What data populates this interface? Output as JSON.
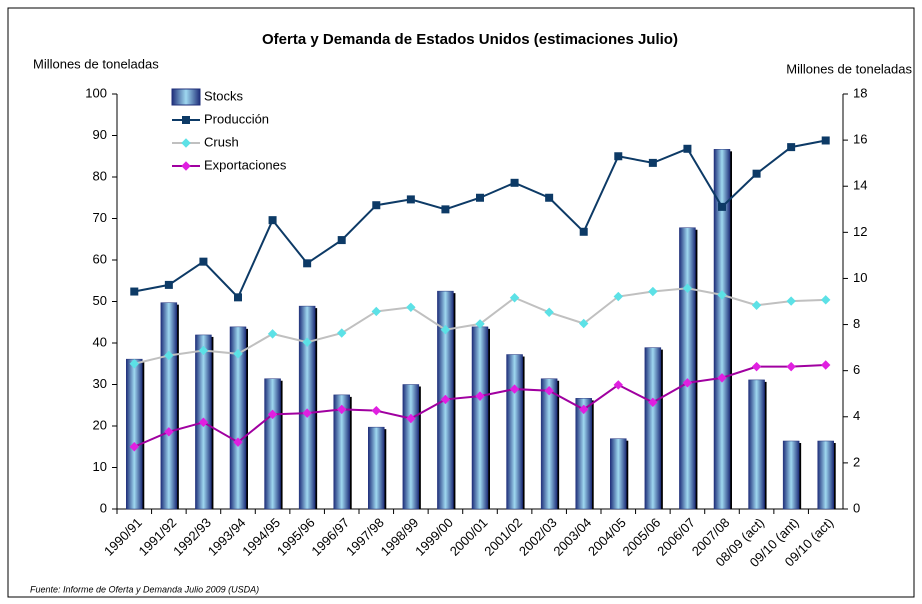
{
  "chart_data": {
    "type": "bar_line",
    "title": "Oferta y Demanda de Estados Unidos (estimaciones Julio)",
    "ylabel": "Millones de toneladas",
    "y2label": "Millones de toneladas",
    "source": "Fuente: Informe de Oferta y Demanda Julio 2009 (USDA)",
    "categories": [
      "1990/91",
      "1991/92",
      "1992/93",
      "1993/94",
      "1994/95",
      "1995/96",
      "1996/97",
      "1997/98",
      "1998/99",
      "1999/00",
      "2000/01",
      "2001/02",
      "2002/03",
      "2003/04",
      "2004/05",
      "2005/06",
      "2006/07",
      "2007/08",
      "08/09 (act)",
      "09/10 (ant)",
      "09/10 (act)"
    ],
    "ylim": [
      0,
      100
    ],
    "yticks": [
      0,
      10,
      20,
      30,
      40,
      50,
      60,
      70,
      80,
      90,
      100
    ],
    "y2lim": [
      0,
      18
    ],
    "y2ticks": [
      0,
      2,
      4,
      6,
      8,
      10,
      12,
      14,
      16,
      18
    ],
    "legend": "upper left",
    "series": [
      {
        "name": "Stocks",
        "type": "bar",
        "axis": "y2",
        "color": "#1f2f7a",
        "values": [
          6.5,
          8.95,
          7.55,
          7.9,
          5.65,
          8.8,
          4.95,
          3.55,
          5.4,
          9.45,
          7.9,
          6.7,
          5.65,
          4.8,
          3.05,
          7.0,
          12.2,
          15.6,
          5.6,
          2.95,
          2.95
        ]
      },
      {
        "name": "Producción",
        "type": "line",
        "color": "#0d3a66",
        "marker_color": "#0d3a66",
        "marker": "square",
        "values": [
          52.4,
          54,
          59.6,
          51,
          69.6,
          59.2,
          64.8,
          73.2,
          74.6,
          72.2,
          75,
          78.6,
          75,
          66.8,
          85,
          83.4,
          86.8,
          72.8,
          80.8,
          87.2,
          88.8
        ]
      },
      {
        "name": "Crush",
        "type": "line",
        "color": "#c0c0c0",
        "marker_color": "#5ce1e6",
        "marker": "diamond",
        "values": [
          35,
          37,
          38.2,
          37.4,
          42.2,
          40.2,
          42.4,
          47.6,
          48.6,
          43.2,
          44.6,
          50.9,
          47.4,
          44.7,
          51.2,
          52.4,
          53.2,
          51.6,
          49.1,
          50.1,
          50.4
        ]
      },
      {
        "name": "Exportaciones",
        "type": "line",
        "color": "#a000a0",
        "marker_color": "#e020e0",
        "marker": "diamond",
        "values": [
          15,
          18.6,
          20.9,
          16.1,
          22.8,
          23.1,
          24,
          23.7,
          21.8,
          26.4,
          27.2,
          28.9,
          28.5,
          24,
          29.9,
          25.7,
          30.4,
          31.6,
          34.3,
          34.3,
          34.7
        ]
      }
    ]
  }
}
